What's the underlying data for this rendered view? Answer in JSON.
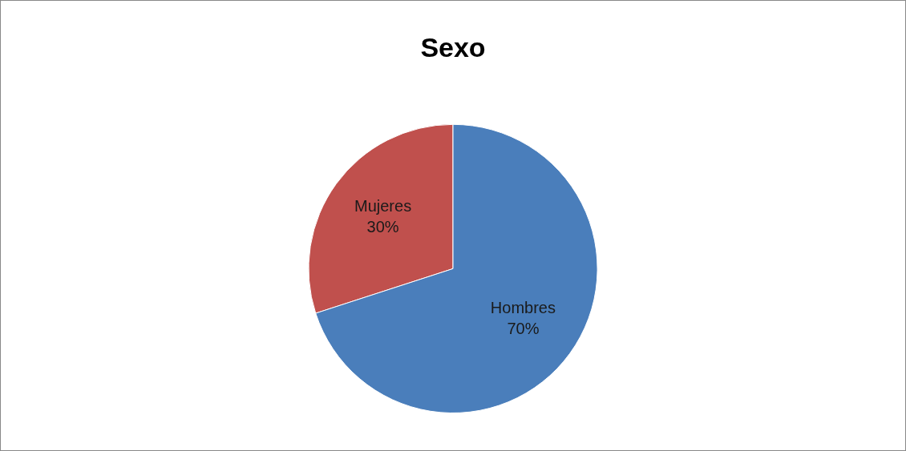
{
  "chart_data": {
    "type": "pie",
    "title": "Sexo",
    "categories": [
      "Mujeres",
      "Hombres"
    ],
    "values": [
      30,
      70
    ],
    "value_labels": [
      "30%",
      "70%"
    ],
    "colors": [
      "#c0504d",
      "#4a7ebb"
    ],
    "legend": false
  }
}
